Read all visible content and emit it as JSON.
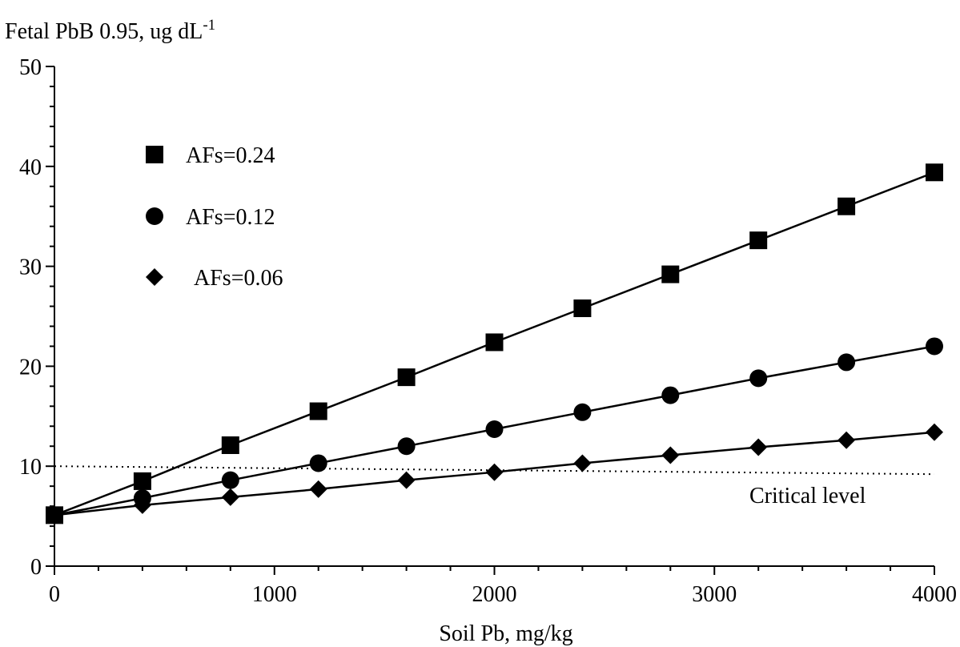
{
  "chart_data": {
    "type": "line",
    "title": "",
    "ylabel_main": "Fetal PbB 0.95, ug dL",
    "ylabel_sup": "-1",
    "xlabel": "Soil Pb, mg/kg",
    "xlim": [
      0,
      4000
    ],
    "ylim": [
      0,
      50
    ],
    "x_ticks": [
      0,
      1000,
      2000,
      3000,
      4000
    ],
    "x_tick_labels": [
      "0",
      "1000",
      "2000",
      "3000",
      "4000"
    ],
    "y_ticks": [
      0,
      10,
      20,
      30,
      40,
      50
    ],
    "y_tick_labels": [
      "0",
      "10",
      "20",
      "30",
      "40",
      "50"
    ],
    "x": [
      0,
      400,
      800,
      1200,
      1600,
      2000,
      2400,
      2800,
      3200,
      3600,
      4000
    ],
    "series": [
      {
        "name": "AFs=0.24",
        "marker": "square",
        "values": [
          5.1,
          8.5,
          12.1,
          15.5,
          18.9,
          22.4,
          25.8,
          29.2,
          32.6,
          36.0,
          39.4
        ]
      },
      {
        "name": "AFs=0.12",
        "marker": "circle",
        "values": [
          5.1,
          6.8,
          8.6,
          10.3,
          12.0,
          13.7,
          15.4,
          17.1,
          18.8,
          20.4,
          22.0
        ]
      },
      {
        "name": "AFs=0.06",
        "marker": "diamond",
        "values": [
          5.1,
          6.1,
          6.9,
          7.7,
          8.6,
          9.4,
          10.3,
          11.1,
          11.9,
          12.6,
          13.4
        ]
      }
    ],
    "critical_level": {
      "label": "Critical level",
      "y_start": 10,
      "y_end": 9.2
    },
    "legend_position": "top-left",
    "grid": false,
    "colors": {
      "line": "#000000",
      "marker": "#000000",
      "background": "#ffffff"
    }
  }
}
